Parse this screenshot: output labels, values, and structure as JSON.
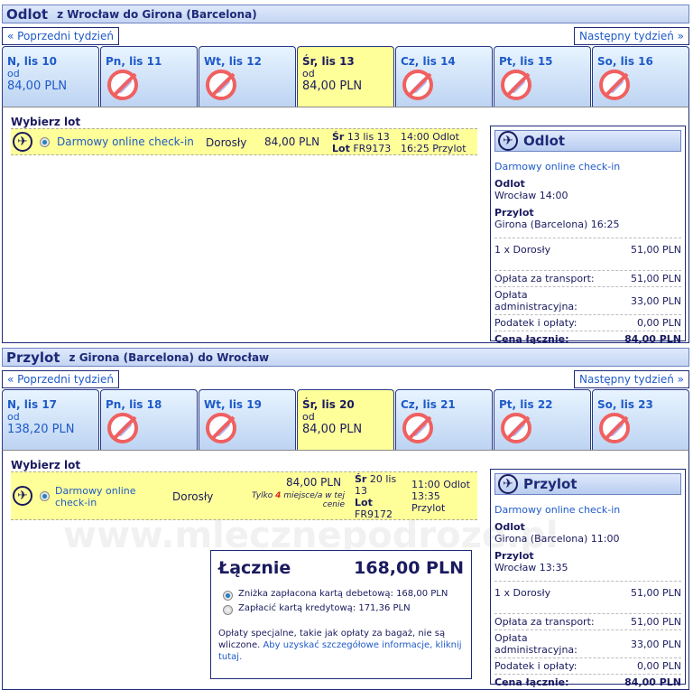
{
  "watermark": "www.mlecznepodroze.pl",
  "outbound": {
    "title": "Odlot",
    "route": "z Wrocław do Girona (Barcelona)",
    "prev": "« Poprzedni tydzień",
    "next": "Następny tydzień »",
    "tabs": [
      {
        "day": "N, lis 10",
        "od": "od",
        "price": "84,00 PLN",
        "available": true,
        "selected": false
      },
      {
        "day": "Pn, lis 11",
        "available": false
      },
      {
        "day": "Wt, lis 12",
        "available": false
      },
      {
        "day": "Śr, lis 13",
        "od": "od",
        "price": "84,00 PLN",
        "available": true,
        "selected": true
      },
      {
        "day": "Cz, lis 14",
        "available": false
      },
      {
        "day": "Pt, lis 15",
        "available": false
      },
      {
        "day": "So, lis 16",
        "available": false
      }
    ],
    "choose": "Wybierz lot",
    "flight": {
      "fare": "Darmowy online check-in",
      "pax": "Dorosły",
      "price": "84,00 PLN",
      "day_l": "Śr",
      "date": "13 lis 13",
      "lot_l": "Lot",
      "num": "FR9173",
      "dep": "14:00 Odlot",
      "arr": "16:25 Przylot"
    },
    "summary": {
      "title": "Odlot",
      "fare": "Darmowy online check-in",
      "dep_l": "Odlot",
      "dep": "Wrocław 14:00",
      "arr_l": "Przylot",
      "arr": "Girona (Barcelona) 16:25",
      "rows": [
        [
          "1 x Dorosły",
          "51,00 PLN"
        ],
        [
          "Opłata za transport:",
          "51,00 PLN"
        ],
        [
          "Opłata administracyjna:",
          "33,00 PLN"
        ],
        [
          "Podatek i opłaty:",
          "0,00 PLN"
        ],
        [
          "Cena łącznie:",
          "84,00 PLN"
        ]
      ]
    }
  },
  "inbound": {
    "title": "Przylot",
    "route": "z Girona (Barcelona) do Wrocław",
    "prev": "« Poprzedni tydzień",
    "next": "Następny tydzień »",
    "tabs": [
      {
        "day": "N, lis 17",
        "od": "od",
        "price": "138,20 PLN",
        "available": true,
        "selected": false
      },
      {
        "day": "Pn, lis 18",
        "available": false
      },
      {
        "day": "Wt, lis 19",
        "available": false
      },
      {
        "day": "Śr, lis 20",
        "od": "od",
        "price": "84,00 PLN",
        "available": true,
        "selected": true
      },
      {
        "day": "Cz, lis 21",
        "available": false
      },
      {
        "day": "Pt, lis 22",
        "available": false
      },
      {
        "day": "So, lis 23",
        "available": false
      }
    ],
    "choose": "Wybierz lot",
    "flight": {
      "fare": "Darmowy online check-in",
      "pax": "Dorosły",
      "price": "84,00 PLN",
      "note1": "Tylko",
      "seats": "4",
      "note2": "miejsce/a w tej cenie",
      "day_l": "Śr",
      "date": "20 lis 13",
      "lot_l": "Lot",
      "num": "FR9172",
      "dep": "11:00 Odlot",
      "arr": "13:35 Przylot"
    },
    "summary": {
      "title": "Przylot",
      "fare": "Darmowy online check-in",
      "dep_l": "Odlot",
      "dep": "Girona (Barcelona) 11:00",
      "arr_l": "Przylot",
      "arr": "Wrocław 13:35",
      "rows": [
        [
          "1 x Dorosły",
          "51,00 PLN"
        ],
        [
          "Opłata za transport:",
          "51,00 PLN"
        ],
        [
          "Opłata administracyjna:",
          "33,00 PLN"
        ],
        [
          "Podatek i opłaty:",
          "0,00 PLN"
        ],
        [
          "Cena łącznie:",
          "84,00 PLN"
        ]
      ]
    }
  },
  "total": {
    "label": "Łącznie",
    "amount": "168,00 PLN",
    "opt1": "Zniżka zapłacona kartą debetową: 168,00 PLN",
    "opt2": "Zapłacić kartą kredytową: 171,36 PLN",
    "note": "Opłaty specjalne, takie jak opłaty za bagaż, nie są wliczone.",
    "link": "Aby uzyskać szczegółowe informacje, kliknij tutaj."
  }
}
